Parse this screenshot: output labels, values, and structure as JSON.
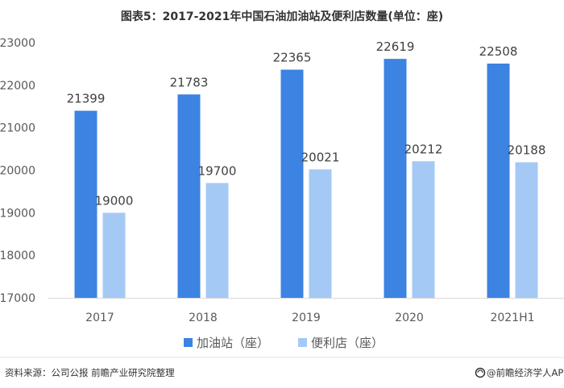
{
  "chart_data": {
    "type": "bar",
    "title": "图表5：2017-2021年中国石油加油站及便利店数量(单位：座)",
    "categories": [
      "2017",
      "2018",
      "2019",
      "2020",
      "2021H1"
    ],
    "series": [
      {
        "name": "加油站（座）",
        "values": [
          21399,
          21783,
          22365,
          22619,
          22508
        ],
        "color": "#3C83E2"
      },
      {
        "name": "便利店（座）",
        "values": [
          19000,
          19700,
          20021,
          20212,
          20188
        ],
        "color": "#A5C9F5"
      }
    ],
    "yticks": [
      17000,
      18000,
      19000,
      20000,
      21000,
      22000,
      23000
    ],
    "ylim": [
      17000,
      23000
    ],
    "grid": false,
    "legend_position": "bottom"
  },
  "footer": {
    "source": "资料来源：公司公报 前瞻产业研究院整理",
    "brand": "@前瞻经济学人APP"
  }
}
